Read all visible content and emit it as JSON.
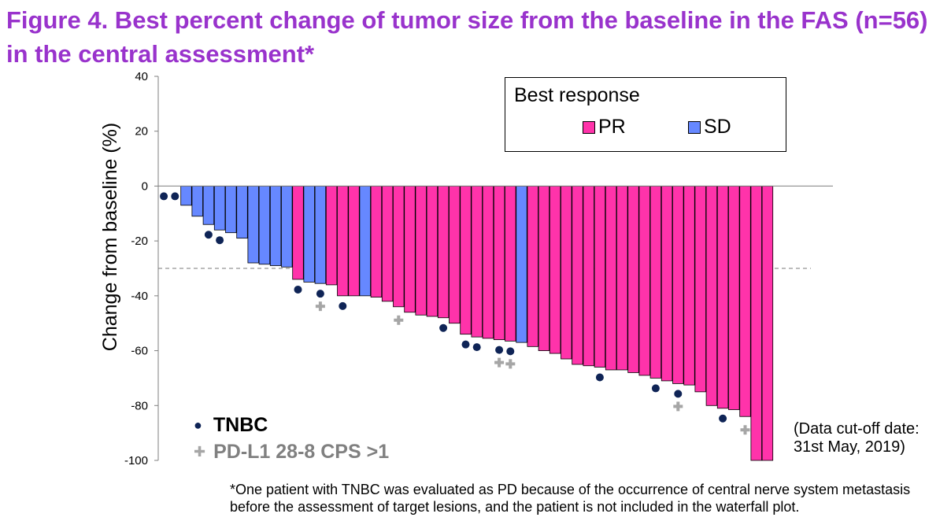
{
  "page": {
    "title": "Figure 4. Best percent change of tumor size from the baseline in the FAS (n=56) in the central assessment*",
    "footnote": "*One patient with TNBC was evaluated as PD because of the occurrence of central nerve system metastasis before the assessment of target lesions, and the patient is not included in the waterfall plot.",
    "cutoff_note": "(Data cut-off date: 31st May, 2019)"
  },
  "colors": {
    "title": "#9933CC",
    "PR": "#FF33AA",
    "SD": "#6688FF",
    "tnbc_marker": "#0F2456",
    "pdl1_marker": "#A6A6A6",
    "pdl1_text": "#808080",
    "threshold": "#A6A6A6"
  },
  "legend": {
    "title": "Best response",
    "items": [
      {
        "label": "PR",
        "category": "PR"
      },
      {
        "label": "SD",
        "category": "SD"
      }
    ]
  },
  "marker_legend": [
    {
      "symbol": "●",
      "label": "TNBC",
      "key": "tnbc"
    },
    {
      "symbol": "✚",
      "label": "PD-L1 28-8 CPS >1",
      "key": "pdl1"
    }
  ],
  "chart_data": {
    "type": "bar",
    "subtype": "waterfall",
    "ylabel": "Change from baseline (%)",
    "xlabel": "",
    "ylim": [
      -100,
      40
    ],
    "yticks": [
      40,
      20,
      0,
      -20,
      -40,
      -60,
      -80,
      -100
    ],
    "threshold": -30,
    "series": [
      {
        "name": "Best percent change",
        "values": [
          0,
          0,
          -7,
          -11,
          -14,
          -16,
          -17,
          -19,
          -28,
          -28.5,
          -29,
          -29.5,
          -34,
          -35,
          -35.5,
          -36,
          -40,
          -40,
          -40,
          -40.5,
          -42,
          -44,
          -46,
          -47,
          -47.5,
          -48,
          -50,
          -54,
          -55,
          -55.5,
          -56,
          -56.5,
          -57,
          -58.5,
          -60,
          -61,
          -63,
          -65,
          -65.5,
          -66,
          -67,
          -67,
          -68,
          -69,
          -70,
          -71,
          -72,
          -72.5,
          -75,
          -80,
          -81,
          -81.5,
          -84,
          -100,
          -100
        ],
        "response": [
          "SD",
          "SD",
          "SD",
          "SD",
          "SD",
          "SD",
          "SD",
          "SD",
          "SD",
          "SD",
          "SD",
          "SD",
          "PR",
          "SD",
          "SD",
          "PR",
          "PR",
          "PR",
          "SD",
          "PR",
          "PR",
          "PR",
          "PR",
          "PR",
          "PR",
          "PR",
          "PR",
          "PR",
          "PR",
          "PR",
          "PR",
          "PR",
          "SD",
          "PR",
          "PR",
          "PR",
          "PR",
          "PR",
          "PR",
          "PR",
          "PR",
          "PR",
          "PR",
          "PR",
          "PR",
          "PR",
          "PR",
          "PR",
          "PR",
          "PR",
          "PR",
          "PR",
          "PR",
          "PR",
          "PR"
        ],
        "tnbc": [
          1,
          2,
          5,
          6,
          13,
          15,
          17,
          26,
          28,
          29,
          31,
          32,
          40,
          45,
          47,
          51
        ],
        "pdl1_positive": [
          15,
          22,
          31,
          32,
          47,
          53
        ]
      }
    ]
  }
}
